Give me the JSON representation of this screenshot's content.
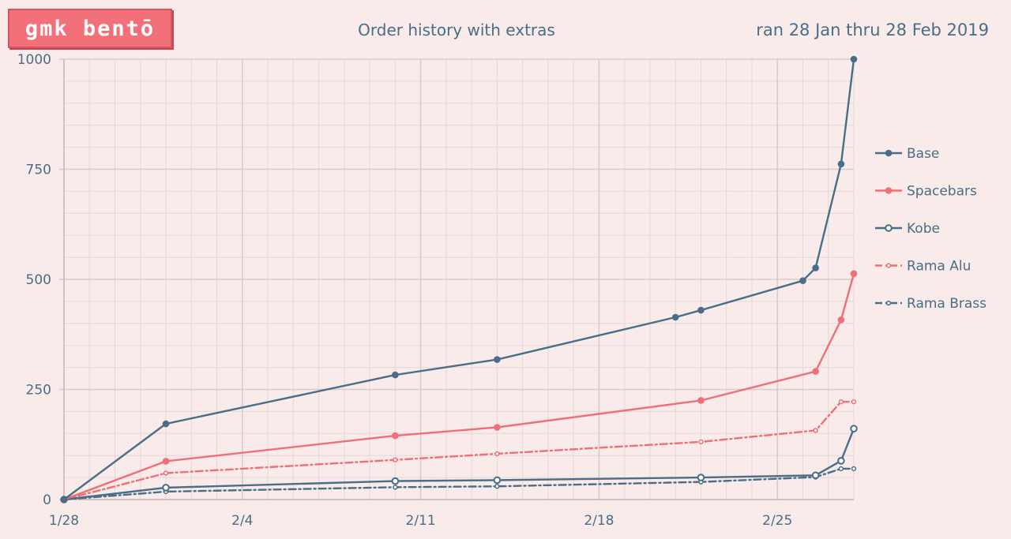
{
  "logo": {
    "text": "gmk bentō"
  },
  "colors": {
    "blue": "#4a6d88",
    "pink": "#ef6f77",
    "background": "#f8ebe9",
    "grid": "#e6d8d6"
  },
  "chart_data": {
    "type": "line",
    "title": "Order history with extras",
    "subtitle": "ran 28 Jan thru 28 Feb 2019",
    "xlabel": "",
    "ylabel": "",
    "x_range": [
      "2019-01-28",
      "2019-02-28"
    ],
    "ylim": [
      0,
      1000
    ],
    "y_ticks": [
      0,
      250,
      500,
      750,
      1000
    ],
    "x_ticks": [
      {
        "date": "2019-01-28",
        "label": "1/28"
      },
      {
        "date": "2019-02-04",
        "label": "2/4"
      },
      {
        "date": "2019-02-11",
        "label": "2/11"
      },
      {
        "date": "2019-02-18",
        "label": "2/18"
      },
      {
        "date": "2019-02-25",
        "label": "2/25"
      }
    ],
    "grid": true,
    "legend_position": "right",
    "series": [
      {
        "name": "Base",
        "color": "#4a6d88",
        "marker": "filled",
        "dash": "solid",
        "points": [
          [
            "2019-01-28",
            0
          ],
          [
            "2019-02-01",
            172
          ],
          [
            "2019-02-10",
            283
          ],
          [
            "2019-02-14",
            318
          ],
          [
            "2019-02-21",
            414
          ],
          [
            "2019-02-22",
            430
          ],
          [
            "2019-02-26",
            497
          ],
          [
            "2019-02-26T12:00",
            526
          ],
          [
            "2019-02-27T12:00",
            762
          ],
          [
            "2019-02-28",
            1000
          ]
        ]
      },
      {
        "name": "Spacebars",
        "color": "#ef6f77",
        "marker": "filled",
        "dash": "solid",
        "points": [
          [
            "2019-01-28",
            0
          ],
          [
            "2019-02-01",
            87
          ],
          [
            "2019-02-10",
            145
          ],
          [
            "2019-02-14",
            164
          ],
          [
            "2019-02-22",
            225
          ],
          [
            "2019-02-26T12:00",
            291
          ],
          [
            "2019-02-27T12:00",
            408
          ],
          [
            "2019-02-28",
            513
          ]
        ]
      },
      {
        "name": "Kobe",
        "color": "#4a6d88",
        "marker": "hollow",
        "dash": "solid",
        "points": [
          [
            "2019-01-28",
            0
          ],
          [
            "2019-02-01",
            27
          ],
          [
            "2019-02-10",
            42
          ],
          [
            "2019-02-14",
            44
          ],
          [
            "2019-02-22",
            50
          ],
          [
            "2019-02-26T12:00",
            55
          ],
          [
            "2019-02-27T12:00",
            88
          ],
          [
            "2019-02-28",
            161
          ]
        ]
      },
      {
        "name": "Rama Alu",
        "color": "#ef6f77",
        "marker": "hollow-small",
        "dash": "dashdot",
        "points": [
          [
            "2019-01-28",
            0
          ],
          [
            "2019-02-01",
            60
          ],
          [
            "2019-02-10",
            90
          ],
          [
            "2019-02-14",
            104
          ],
          [
            "2019-02-22",
            131
          ],
          [
            "2019-02-26T12:00",
            157
          ],
          [
            "2019-02-27T12:00",
            222
          ],
          [
            "2019-02-28",
            222
          ]
        ]
      },
      {
        "name": "Rama Brass",
        "color": "#4a6d88",
        "marker": "hollow-small",
        "dash": "dashdot",
        "points": [
          [
            "2019-01-28",
            0
          ],
          [
            "2019-02-01",
            18
          ],
          [
            "2019-02-10",
            28
          ],
          [
            "2019-02-14",
            30
          ],
          [
            "2019-02-22",
            40
          ],
          [
            "2019-02-26T12:00",
            51
          ],
          [
            "2019-02-27T12:00",
            70
          ],
          [
            "2019-02-28",
            70
          ]
        ]
      }
    ]
  }
}
